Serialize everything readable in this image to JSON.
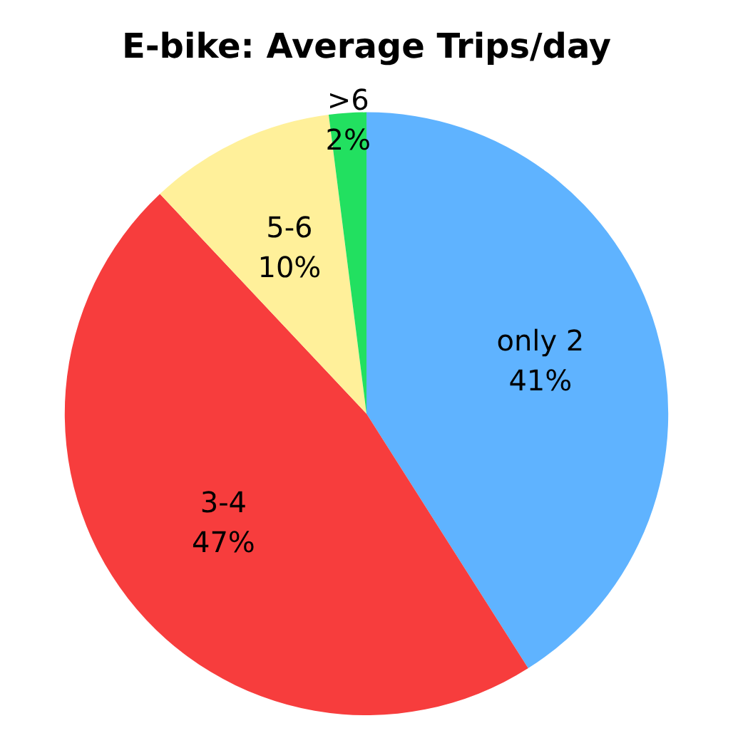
{
  "chart_data": {
    "type": "pie",
    "title": "E-bike: Average Trips/day",
    "categories": [
      "only 2",
      "3-4",
      "5-6",
      ">6"
    ],
    "values": [
      41,
      47,
      10,
      2
    ],
    "value_labels": [
      "41%",
      "47%",
      "10%",
      "2%"
    ],
    "colors": [
      "#5fb3ff",
      "#f73d3d",
      "#fff09a",
      "#22e060"
    ],
    "legend": false
  }
}
